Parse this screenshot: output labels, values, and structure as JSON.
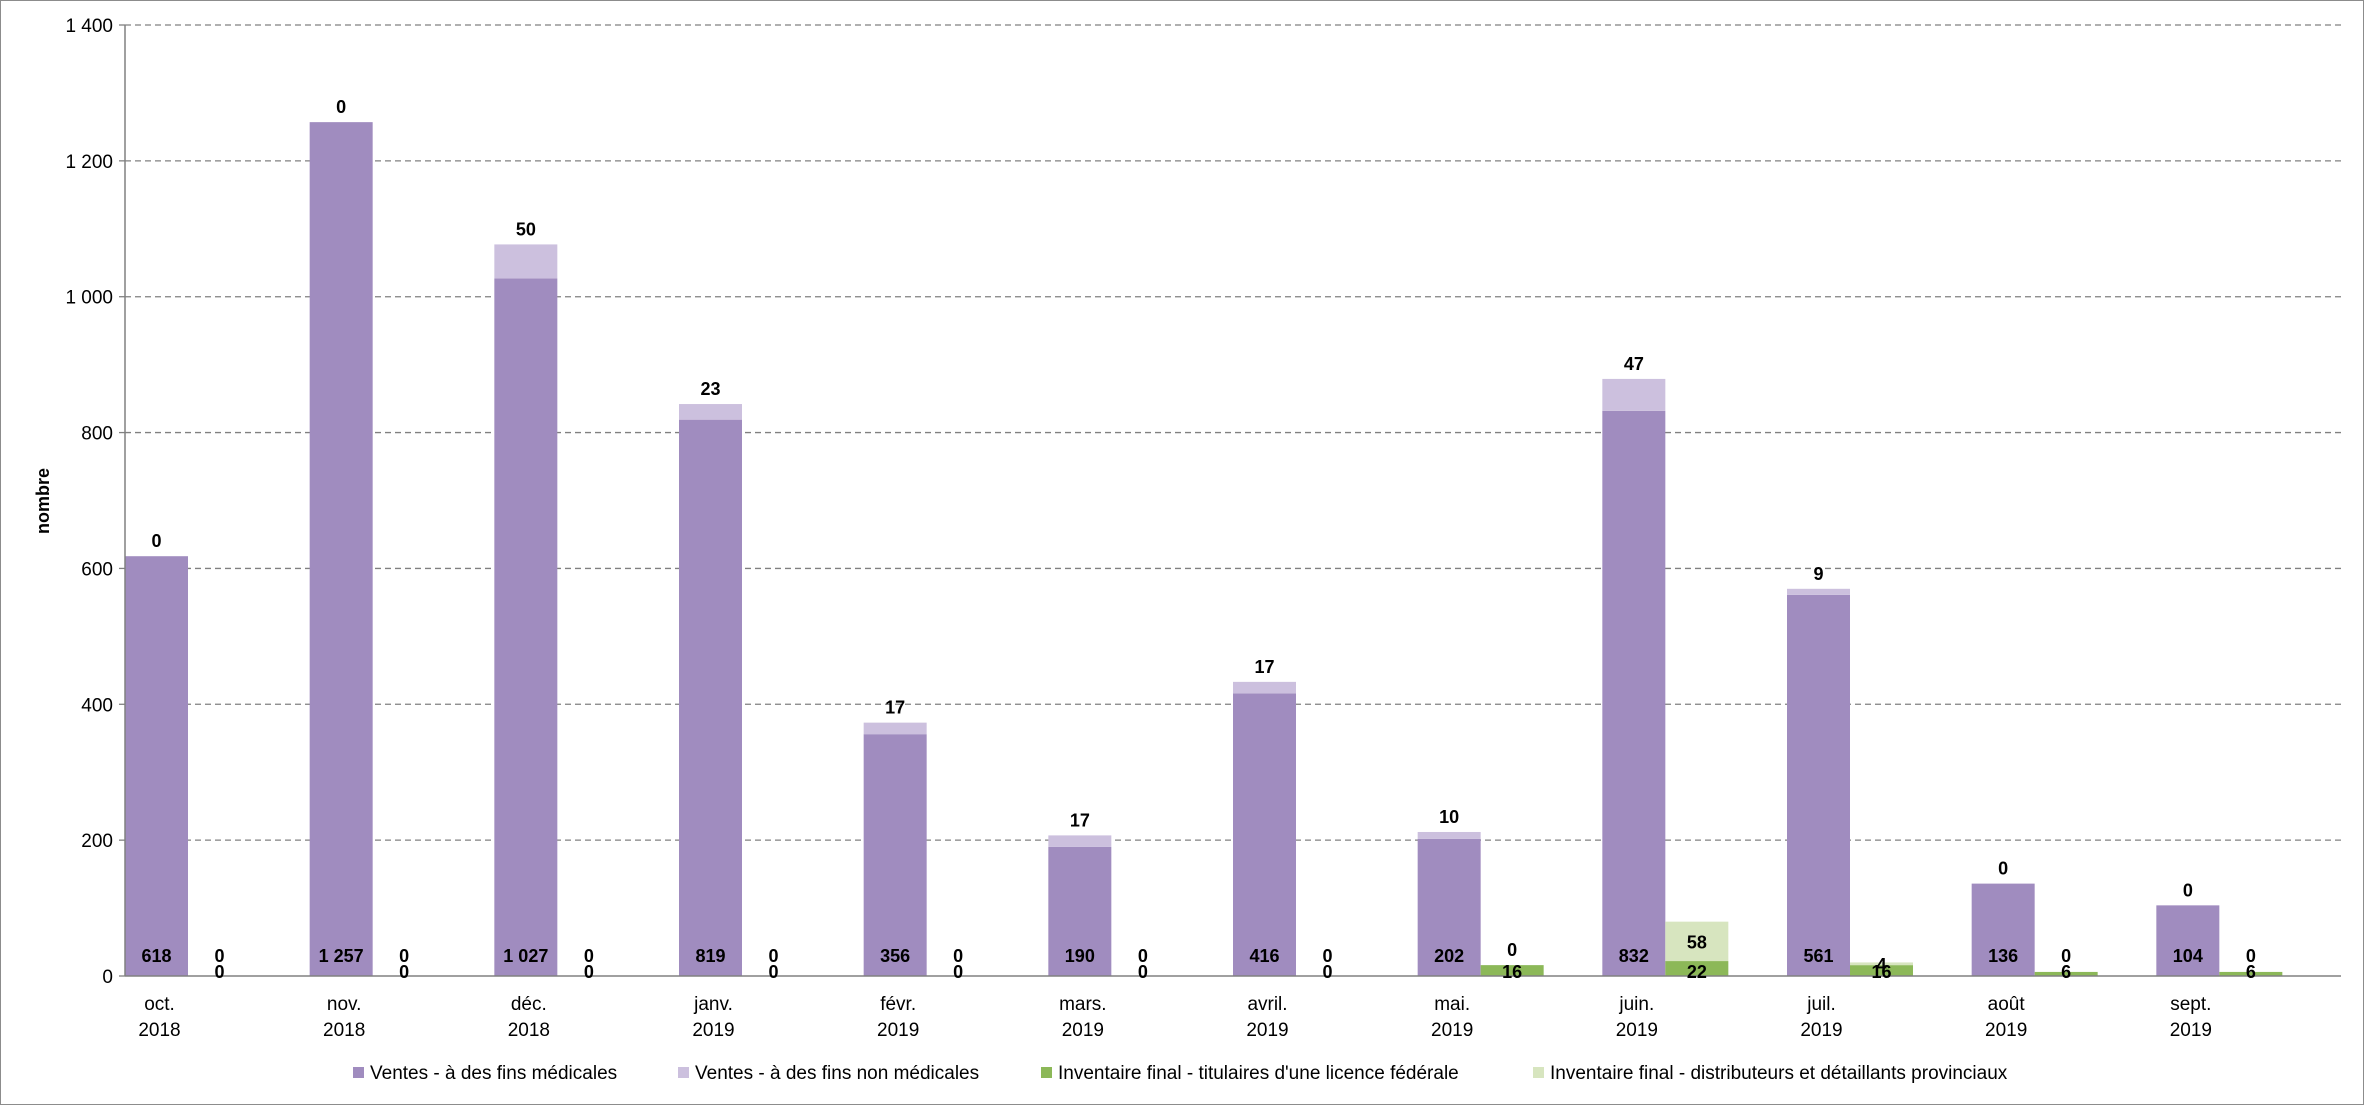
{
  "chart_data": {
    "type": "bar",
    "stacked": true,
    "ylabel": "nombre",
    "xlabel": "",
    "ylim": [
      0,
      1400
    ],
    "yticks": [
      0,
      200,
      400,
      600,
      800,
      1000,
      1200,
      1400
    ],
    "ytick_labels": [
      "0",
      "200",
      "400",
      "600",
      "800",
      "1 000",
      "1 200",
      "1 400"
    ],
    "grid": "horizontal-dashed",
    "legend_position": "bottom",
    "categories": [
      {
        "month": "oct.",
        "year": "2018"
      },
      {
        "month": "nov.",
        "year": "2018"
      },
      {
        "month": "déc.",
        "year": "2018"
      },
      {
        "month": "janv.",
        "year": "2019"
      },
      {
        "month": "févr.",
        "year": "2019"
      },
      {
        "month": "mars.",
        "year": "2019"
      },
      {
        "month": "avril.",
        "year": "2019"
      },
      {
        "month": "mai.",
        "year": "2019"
      },
      {
        "month": "juin.",
        "year": "2019"
      },
      {
        "month": "juil.",
        "year": "2019"
      },
      {
        "month": "août",
        "year": "2019"
      },
      {
        "month": "sept.",
        "year": "2019"
      }
    ],
    "stacks": [
      {
        "name": "Ventes",
        "series": [
          {
            "name": "Ventes - à des fins médicales",
            "color": "#a08cbf",
            "values": [
              618,
              1257,
              1027,
              819,
              356,
              190,
              416,
              202,
              832,
              561,
              136,
              104
            ],
            "labels": [
              "618",
              "1 257",
              "1 027",
              "819",
              "356",
              "190",
              "416",
              "202",
              "832",
              "561",
              "136",
              "104"
            ]
          },
          {
            "name": "Ventes - à des fins non médicales",
            "color": "#ccc0de",
            "values": [
              0,
              0,
              50,
              23,
              17,
              17,
              17,
              10,
              47,
              9,
              0,
              0
            ],
            "labels": [
              "0",
              "0",
              "50",
              "23",
              "17",
              "17",
              "17",
              "10",
              "47",
              "9",
              "0",
              "0"
            ]
          }
        ]
      },
      {
        "name": "Inventaire final",
        "series": [
          {
            "name": "Inventaire final - titulaires d'une licence fédérale",
            "color": "#8cb858",
            "values": [
              0,
              0,
              0,
              0,
              0,
              0,
              0,
              16,
              22,
              16,
              6,
              6
            ],
            "labels": [
              "0",
              "0",
              "0",
              "0",
              "0",
              "0",
              "0",
              "16",
              "22",
              "16",
              "6",
              "6"
            ]
          },
          {
            "name": "Inventaire final - distributeurs et détaillants provinciaux",
            "color": "#d7e5bf",
            "values": [
              0,
              0,
              0,
              0,
              0,
              0,
              0,
              0,
              58,
              4,
              0,
              0
            ],
            "labels": [
              "0",
              "0",
              "0",
              "0",
              "0",
              "0",
              "0",
              "0",
              "58",
              "4",
              "0",
              "0"
            ]
          }
        ]
      }
    ]
  }
}
